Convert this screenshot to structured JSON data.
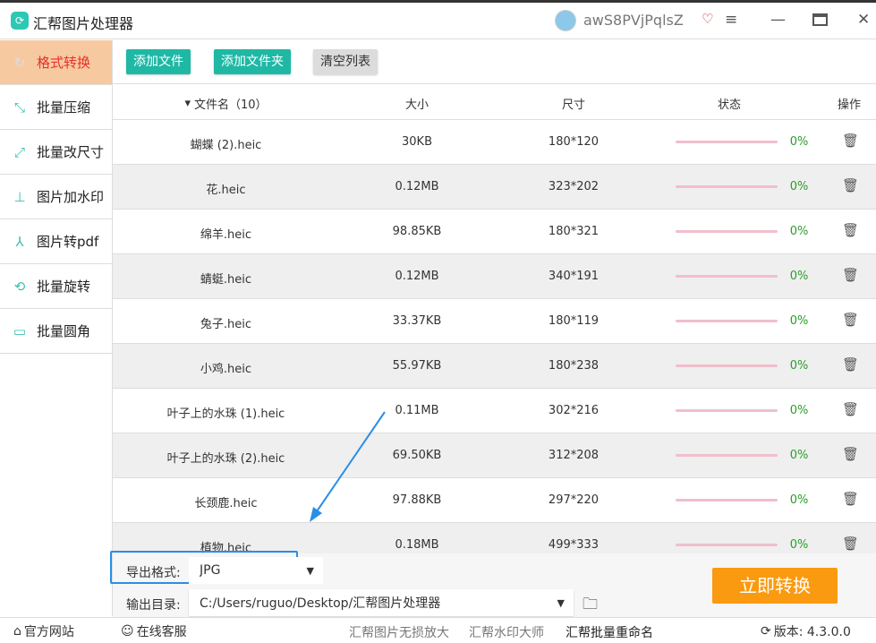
{
  "app": {
    "title": "汇帮图片处理器",
    "username": "awS8PVjPqlsZ"
  },
  "sidebar": {
    "items": [
      {
        "label": "格式转换",
        "icon": "convert-icon"
      },
      {
        "label": "批量压缩",
        "icon": "compress-icon"
      },
      {
        "label": "批量改尺寸",
        "icon": "resize-icon"
      },
      {
        "label": "图片加水印",
        "icon": "watermark-icon"
      },
      {
        "label": "图片转pdf",
        "icon": "pdf-icon"
      },
      {
        "label": "批量旋转",
        "icon": "rotate-icon"
      },
      {
        "label": "批量圆角",
        "icon": "round-corner-icon"
      }
    ]
  },
  "toolbar": {
    "add_file": "添加文件",
    "add_folder": "添加文件夹",
    "clear": "清空列表"
  },
  "table": {
    "headers": {
      "name": "文件名（10）",
      "size": "大小",
      "dims": "尺寸",
      "status": "状态",
      "action": "操作"
    },
    "rows": [
      {
        "name": "蝴蝶 (2).heic",
        "size": "30KB",
        "dims": "180*120",
        "pct": "0%"
      },
      {
        "name": "花.heic",
        "size": "0.12MB",
        "dims": "323*202",
        "pct": "0%"
      },
      {
        "name": "绵羊.heic",
        "size": "98.85KB",
        "dims": "180*321",
        "pct": "0%"
      },
      {
        "name": "蜻蜓.heic",
        "size": "0.12MB",
        "dims": "340*191",
        "pct": "0%"
      },
      {
        "name": "兔子.heic",
        "size": "33.37KB",
        "dims": "180*119",
        "pct": "0%"
      },
      {
        "name": "小鸡.heic",
        "size": "55.97KB",
        "dims": "180*238",
        "pct": "0%"
      },
      {
        "name": "叶子上的水珠 (1).heic",
        "size": "0.11MB",
        "dims": "302*216",
        "pct": "0%"
      },
      {
        "name": "叶子上的水珠 (2).heic",
        "size": "69.50KB",
        "dims": "312*208",
        "pct": "0%"
      },
      {
        "name": "长颈鹿.heic",
        "size": "97.88KB",
        "dims": "297*220",
        "pct": "0%"
      },
      {
        "name": "植物.heic",
        "size": "0.18MB",
        "dims": "499*333",
        "pct": "0%"
      }
    ]
  },
  "bottom": {
    "format_label": "导出格式:",
    "format_value": "JPG",
    "output_label": "输出目录:",
    "output_value": "C:/Users/ruguo/Desktop/汇帮图片处理器",
    "convert": "立即转换"
  },
  "footer": {
    "website": "官方网站",
    "support": "在线客服",
    "link1": "汇帮图片无损放大",
    "link2": "汇帮水印大师",
    "link3": "汇帮批量重命名",
    "version": "版本: 4.3.0.0"
  },
  "colors": {
    "accent": "#1fb8a5",
    "active_bg": "#f7c9a0",
    "convert": "#fa9a10"
  }
}
